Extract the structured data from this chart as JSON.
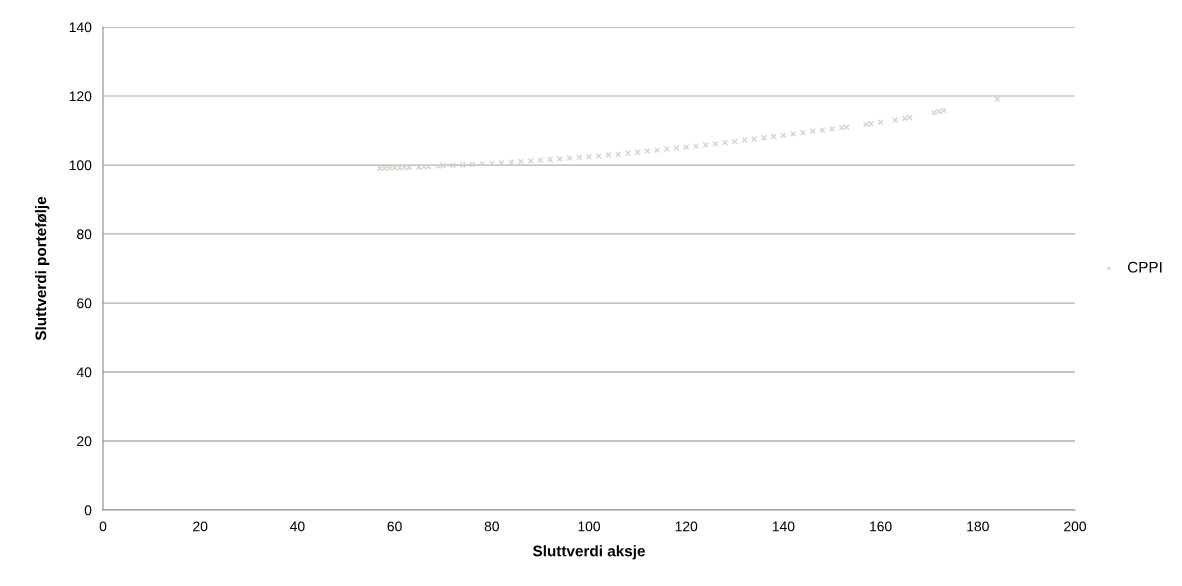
{
  "chart_data": {
    "type": "scatter",
    "xlabel": "Sluttverdi aksje",
    "ylabel": "Sluttverdi portefølje",
    "xlim": [
      0,
      200
    ],
    "xticks": [
      0,
      20,
      40,
      60,
      80,
      100,
      120,
      140,
      160,
      180,
      200
    ],
    "ylim": [
      0,
      140
    ],
    "yticks": [
      0,
      20,
      40,
      60,
      80,
      100,
      120,
      140
    ],
    "grid": "y",
    "legend": "right",
    "marker": "cross",
    "series": [
      {
        "name": "CPPI",
        "color": "#d6d4c8",
        "x": [
          57,
          58,
          59,
          60,
          61,
          62,
          63,
          65,
          66,
          67,
          69,
          70,
          72,
          74,
          76,
          78,
          80,
          82,
          84,
          86,
          88,
          90,
          92,
          94,
          96,
          98,
          100,
          102,
          104,
          106,
          108,
          110,
          112,
          114,
          116,
          118,
          120,
          122,
          124,
          126,
          128,
          130,
          132,
          134,
          136,
          138,
          140,
          142,
          144,
          146,
          148,
          150,
          152,
          153,
          157,
          158,
          160,
          163,
          165,
          166,
          171,
          172,
          173,
          184
        ],
        "values": [
          99.0,
          99.1,
          99.1,
          99.2,
          99.2,
          99.3,
          99.3,
          99.4,
          99.5,
          99.5,
          99.7,
          99.8,
          99.9,
          100.0,
          100.1,
          100.3,
          100.5,
          100.6,
          100.8,
          101.0,
          101.2,
          101.4,
          101.6,
          101.8,
          102.0,
          102.2,
          102.4,
          102.6,
          102.9,
          103.1,
          103.4,
          103.7,
          104.0,
          104.3,
          104.6,
          104.9,
          105.2,
          105.5,
          105.8,
          106.1,
          106.5,
          106.8,
          107.2,
          107.5,
          107.9,
          108.3,
          108.6,
          109.0,
          109.4,
          109.8,
          110.1,
          110.5,
          110.8,
          111.0,
          111.7,
          112.0,
          112.4,
          113.0,
          113.5,
          113.8,
          115.2,
          115.5,
          115.8,
          119.0
        ]
      }
    ]
  }
}
